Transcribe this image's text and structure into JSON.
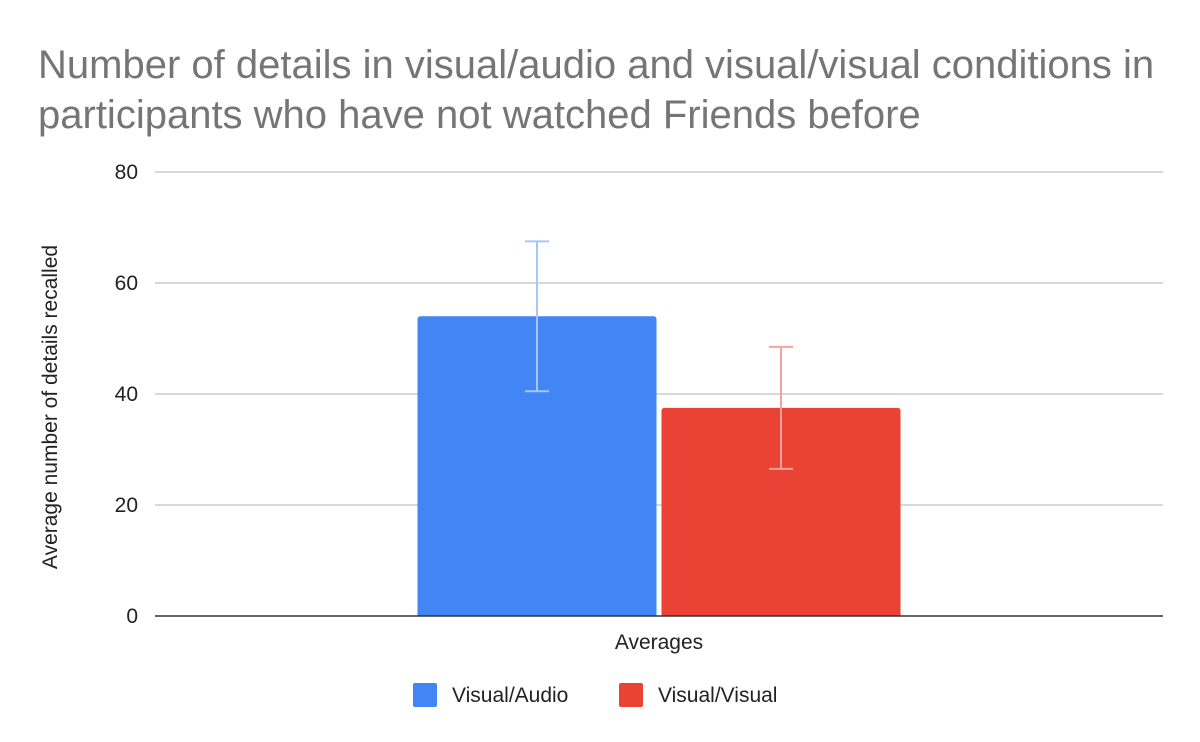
{
  "chart_data": {
    "type": "bar",
    "title": "Number of details in visual/audio and visual/visual conditions in participants who have not watched Friends before",
    "xlabel": "",
    "ylabel": "Average number of details recalled",
    "categories": [
      "Averages"
    ],
    "series": [
      {
        "name": "Visual/Audio",
        "values": [
          54
        ],
        "error_low": [
          40.5
        ],
        "error_high": [
          67.5
        ],
        "color": "#4285F4",
        "error_color": "#A8C6FA"
      },
      {
        "name": "Visual/Visual",
        "values": [
          37.5
        ],
        "error_low": [
          26.5
        ],
        "error_high": [
          48.5
        ],
        "color": "#EA4335",
        "error_color": "#F4A29A"
      }
    ],
    "ylim": [
      0,
      80
    ],
    "yticks": [
      0,
      20,
      40,
      60,
      80
    ],
    "grid": true,
    "legend_position": "bottom"
  }
}
